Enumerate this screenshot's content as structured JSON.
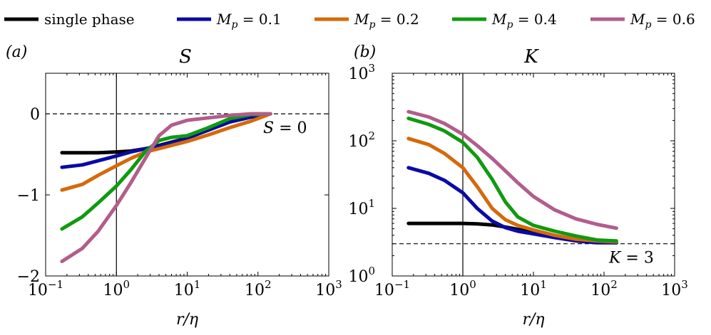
{
  "figure": {
    "legend": [
      {
        "label": "single phase",
        "base": "",
        "sub": "",
        "eq": "",
        "color": "#000000"
      },
      {
        "label": "",
        "base": "M",
        "sub": "p",
        "eq": " = 0.1",
        "color": "#0a0aa5"
      },
      {
        "label": "",
        "base": "M",
        "sub": "p",
        "eq": " = 0.2",
        "color": "#d46a0a"
      },
      {
        "label": "",
        "base": "M",
        "sub": "p",
        "eq": " = 0.4",
        "color": "#0f9a0f"
      },
      {
        "label": "",
        "base": "M",
        "sub": "p",
        "eq": " = 0.6",
        "color": "#b25d8c"
      }
    ]
  },
  "chart_data": [
    {
      "type": "line",
      "panel_label": "(a)",
      "title": "S",
      "xlabel": "r/η",
      "ylabel": "",
      "xscale": "log",
      "yscale": "linear",
      "xlim": [
        0.1,
        1000
      ],
      "ylim": [
        -2,
        0.5
      ],
      "x_ticks": [
        {
          "base": "10",
          "exp": "−1"
        },
        {
          "base": "10",
          "exp": "0"
        },
        {
          "base": "10",
          "exp": "1"
        },
        {
          "base": "10",
          "exp": "2"
        },
        {
          "base": "10",
          "exp": "3"
        }
      ],
      "y_ticks": [
        {
          "value": 0,
          "label": "0"
        },
        {
          "value": -1,
          "label": "−1"
        },
        {
          "value": -2,
          "label": "−2"
        }
      ],
      "ref_hline": {
        "y": 0,
        "label_sym": "S",
        "label_eq": " = 0"
      },
      "ref_vline": {
        "x": 1
      },
      "x": [
        0.17,
        0.33,
        0.55,
        1.0,
        1.6,
        2.6,
        4.0,
        6.0,
        10,
        20,
        40,
        80,
        150
      ],
      "series": [
        {
          "name": "single phase",
          "values": [
            -0.48,
            -0.48,
            -0.48,
            -0.47,
            -0.46,
            -0.43,
            -0.39,
            -0.35,
            -0.3,
            -0.2,
            -0.1,
            -0.04,
            0.0
          ]
        },
        {
          "name": "M_p = 0.1",
          "values": [
            -0.66,
            -0.63,
            -0.58,
            -0.52,
            -0.47,
            -0.43,
            -0.4,
            -0.36,
            -0.3,
            -0.2,
            -0.1,
            -0.04,
            0.0
          ]
        },
        {
          "name": "M_p = 0.2",
          "values": [
            -0.94,
            -0.87,
            -0.76,
            -0.64,
            -0.55,
            -0.47,
            -0.43,
            -0.39,
            -0.34,
            -0.26,
            -0.17,
            -0.09,
            0.0
          ]
        },
        {
          "name": "M_p = 0.4",
          "values": [
            -1.42,
            -1.27,
            -1.1,
            -0.89,
            -0.69,
            -0.46,
            -0.33,
            -0.29,
            -0.27,
            -0.17,
            -0.06,
            -0.01,
            0.0
          ]
        },
        {
          "name": "M_p = 0.6",
          "values": [
            -1.82,
            -1.66,
            -1.45,
            -1.13,
            -0.85,
            -0.54,
            -0.27,
            -0.14,
            -0.08,
            -0.05,
            -0.02,
            0.0,
            0.0
          ]
        }
      ]
    },
    {
      "type": "line",
      "panel_label": "(b)",
      "title": "K",
      "xlabel": "r/η",
      "ylabel": "",
      "xscale": "log",
      "yscale": "log",
      "xlim": [
        0.1,
        1000
      ],
      "ylim": [
        1,
        1000
      ],
      "x_ticks": [
        {
          "base": "10",
          "exp": "−1"
        },
        {
          "base": "10",
          "exp": "0"
        },
        {
          "base": "10",
          "exp": "1"
        },
        {
          "base": "10",
          "exp": "2"
        },
        {
          "base": "10",
          "exp": "3"
        }
      ],
      "y_ticks": [
        {
          "value": 1,
          "base": "10",
          "exp": "0"
        },
        {
          "value": 10,
          "base": "10",
          "exp": "1"
        },
        {
          "value": 100,
          "base": "10",
          "exp": "2"
        },
        {
          "value": 1000,
          "base": "10",
          "exp": "3"
        }
      ],
      "ref_hline": {
        "y": 3,
        "label_sym": "K",
        "label_eq": " = 3"
      },
      "ref_vline": {
        "x": 1
      },
      "x": [
        0.17,
        0.33,
        0.55,
        1.0,
        1.6,
        2.6,
        4.0,
        6.0,
        10,
        20,
        40,
        80,
        150
      ],
      "series": [
        {
          "name": "single phase",
          "values": [
            6.0,
            6.0,
            6.0,
            6.0,
            5.9,
            5.7,
            5.3,
            4.9,
            4.4,
            3.8,
            3.4,
            3.2,
            3.1
          ]
        },
        {
          "name": "M_p = 0.1",
          "values": [
            40,
            33,
            26,
            17,
            10,
            6.5,
            5.2,
            4.6,
            4.2,
            3.7,
            3.3,
            3.1,
            3.1
          ]
        },
        {
          "name": "M_p = 0.2",
          "values": [
            108,
            88,
            65,
            40,
            21,
            10,
            6.8,
            5.6,
            4.8,
            4.0,
            3.5,
            3.3,
            3.2
          ]
        },
        {
          "name": "M_p = 0.4",
          "values": [
            215,
            175,
            140,
            95,
            57,
            27,
            12.5,
            7.5,
            5.6,
            4.6,
            3.9,
            3.4,
            3.3
          ]
        },
        {
          "name": "M_p = 0.6",
          "values": [
            270,
            225,
            180,
            125,
            85,
            55,
            36,
            24,
            15,
            9.5,
            7.0,
            5.8,
            5.1
          ]
        }
      ]
    }
  ]
}
